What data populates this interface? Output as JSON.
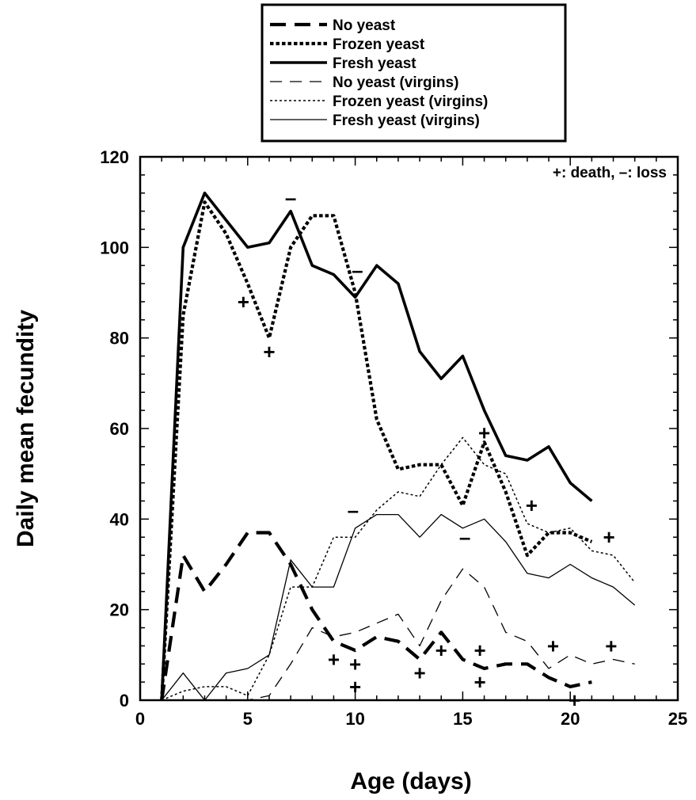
{
  "chart_data": {
    "type": "line",
    "xlabel": "Age (days)",
    "ylabel": "Daily mean fecundity",
    "xlim": [
      0,
      25
    ],
    "ylim": [
      0,
      120
    ],
    "xticks": [
      "0",
      "5",
      "10",
      "15",
      "20",
      "25"
    ],
    "yticks": [
      "0",
      "20",
      "40",
      "60",
      "80",
      "100",
      "120"
    ],
    "note": "+: death, –: loss",
    "legend_position": "top, outside plot",
    "series": [
      {
        "name": "No yeast",
        "style": "thick-dash",
        "x": [
          1,
          2,
          3,
          4,
          5,
          6,
          7,
          8,
          9,
          10,
          11,
          12,
          13,
          14,
          15,
          16,
          17,
          18,
          19,
          20,
          21
        ],
        "y": [
          0,
          32,
          24,
          30,
          37,
          37,
          30,
          20,
          13,
          11,
          14,
          13,
          9,
          15,
          9,
          7,
          8,
          8,
          5,
          3,
          4
        ]
      },
      {
        "name": "Frozen yeast",
        "style": "thick-dot",
        "x": [
          1,
          2,
          3,
          4,
          5,
          6,
          7,
          8,
          9,
          10,
          11,
          12,
          13,
          14,
          15,
          16,
          17,
          18,
          19,
          20,
          21
        ],
        "y": [
          0,
          85,
          110,
          103,
          92,
          80,
          100,
          107,
          107,
          90,
          62,
          51,
          52,
          52,
          43,
          57,
          46,
          32,
          37,
          37,
          35
        ]
      },
      {
        "name": "Fresh yeast",
        "style": "thick-solid",
        "x": [
          1,
          2,
          3,
          4,
          5,
          6,
          7,
          8,
          9,
          10,
          11,
          12,
          13,
          14,
          15,
          16,
          17,
          18,
          19,
          20,
          21
        ],
        "y": [
          0,
          100,
          112,
          106,
          100,
          101,
          108,
          96,
          94,
          89,
          96,
          92,
          77,
          71,
          76,
          64,
          54,
          53,
          56,
          48,
          44
        ]
      },
      {
        "name": "No yeast (virgins)",
        "style": "thin-dash",
        "x": [
          1,
          2,
          3,
          4,
          5,
          6,
          7,
          8,
          9,
          10,
          11,
          12,
          13,
          14,
          15,
          16,
          17,
          18,
          19,
          20,
          21,
          22,
          23
        ],
        "y": [
          0,
          0,
          0,
          0,
          0,
          1,
          8,
          16,
          14,
          15,
          17,
          19,
          12,
          22,
          29,
          25,
          15,
          13,
          7,
          10,
          8,
          9,
          8
        ]
      },
      {
        "name": "Frozen yeast (virgins)",
        "style": "thin-dot",
        "x": [
          1,
          2,
          3,
          4,
          5,
          6,
          7,
          8,
          9,
          10,
          11,
          12,
          13,
          14,
          15,
          16,
          17,
          18,
          19,
          20,
          21,
          22,
          23
        ],
        "y": [
          0,
          2,
          3,
          3,
          1,
          10,
          25,
          25,
          36,
          36,
          42,
          46,
          45,
          52,
          58,
          52,
          50,
          39,
          37,
          38,
          33,
          32,
          26
        ]
      },
      {
        "name": "Fresh yeast (virgins)",
        "style": "thin-solid",
        "x": [
          1,
          2,
          3,
          4,
          5,
          6,
          7,
          8,
          9,
          10,
          11,
          12,
          13,
          14,
          15,
          16,
          17,
          18,
          19,
          20,
          21,
          22,
          23
        ],
        "y": [
          0,
          6,
          0,
          6,
          7,
          10,
          31,
          25,
          25,
          38,
          41,
          41,
          36,
          41,
          38,
          40,
          35,
          28,
          27,
          30,
          27,
          25,
          21
        ]
      }
    ],
    "annotations": [
      {
        "text": "+",
        "x": 4.8,
        "y": 88
      },
      {
        "text": "+",
        "x": 6.0,
        "y": 77
      },
      {
        "text": "–",
        "x": 7.0,
        "y": 111
      },
      {
        "text": "–",
        "x": 10.1,
        "y": 95
      },
      {
        "text": "–",
        "x": 9.9,
        "y": 42
      },
      {
        "text": "+",
        "x": 9.0,
        "y": 9
      },
      {
        "text": "+",
        "x": 10.0,
        "y": 8
      },
      {
        "text": "+",
        "x": 10.0,
        "y": 3
      },
      {
        "text": "+",
        "x": 13.0,
        "y": 6
      },
      {
        "text": "+",
        "x": 14.0,
        "y": 11
      },
      {
        "text": "–",
        "x": 15.1,
        "y": 36
      },
      {
        "text": "+",
        "x": 15.8,
        "y": 11
      },
      {
        "text": "+",
        "x": 15.8,
        "y": 4
      },
      {
        "text": "+",
        "x": 16.0,
        "y": 59
      },
      {
        "text": "+",
        "x": 18.2,
        "y": 43
      },
      {
        "text": "+",
        "x": 19.2,
        "y": 12
      },
      {
        "text": "+",
        "x": 20.2,
        "y": 0
      },
      {
        "text": "+",
        "x": 21.8,
        "y": 36
      },
      {
        "text": "+",
        "x": 21.9,
        "y": 12
      }
    ]
  }
}
